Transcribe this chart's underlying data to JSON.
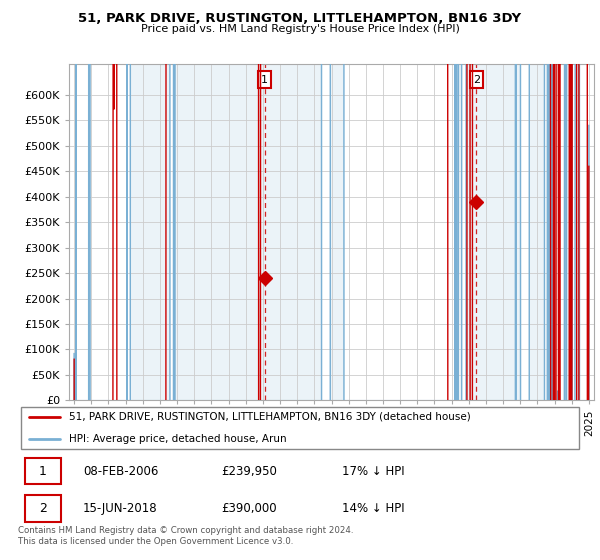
{
  "title": "51, PARK DRIVE, RUSTINGTON, LITTLEHAMPTON, BN16 3DY",
  "subtitle": "Price paid vs. HM Land Registry's House Price Index (HPI)",
  "red_label": "51, PARK DRIVE, RUSTINGTON, LITTLEHAMPTON, BN16 3DY (detached house)",
  "blue_label": "HPI: Average price, detached house, Arun",
  "annotation1": {
    "num": "1",
    "date": "08-FEB-2006",
    "price": "£239,950",
    "hpi": "17% ↓ HPI"
  },
  "annotation2": {
    "num": "2",
    "date": "15-JUN-2018",
    "price": "£390,000",
    "hpi": "14% ↓ HPI"
  },
  "footnote": "Contains HM Land Registry data © Crown copyright and database right 2024.\nThis data is licensed under the Open Government Licence v3.0.",
  "ylim": [
    0,
    660000
  ],
  "yticks": [
    0,
    50000,
    100000,
    150000,
    200000,
    250000,
    300000,
    350000,
    400000,
    450000,
    500000,
    550000,
    600000
  ],
  "ytick_labels": [
    "£0",
    "£50K",
    "£100K",
    "£150K",
    "£200K",
    "£250K",
    "£300K",
    "£350K",
    "£400K",
    "£450K",
    "£500K",
    "£550K",
    "£600K"
  ],
  "red_color": "#cc0000",
  "blue_color": "#7ab0d4",
  "fill_color": "#ddeeff",
  "bg_color": "#ffffff",
  "grid_color": "#cccccc",
  "marker1_x": 2006.1,
  "marker1_y": 239950,
  "marker2_x": 2018.45,
  "marker2_y": 390000,
  "marker1_vline_x": 2006.1,
  "marker2_vline_x": 2018.45,
  "xlim_left": 1994.7,
  "xlim_right": 2025.3
}
